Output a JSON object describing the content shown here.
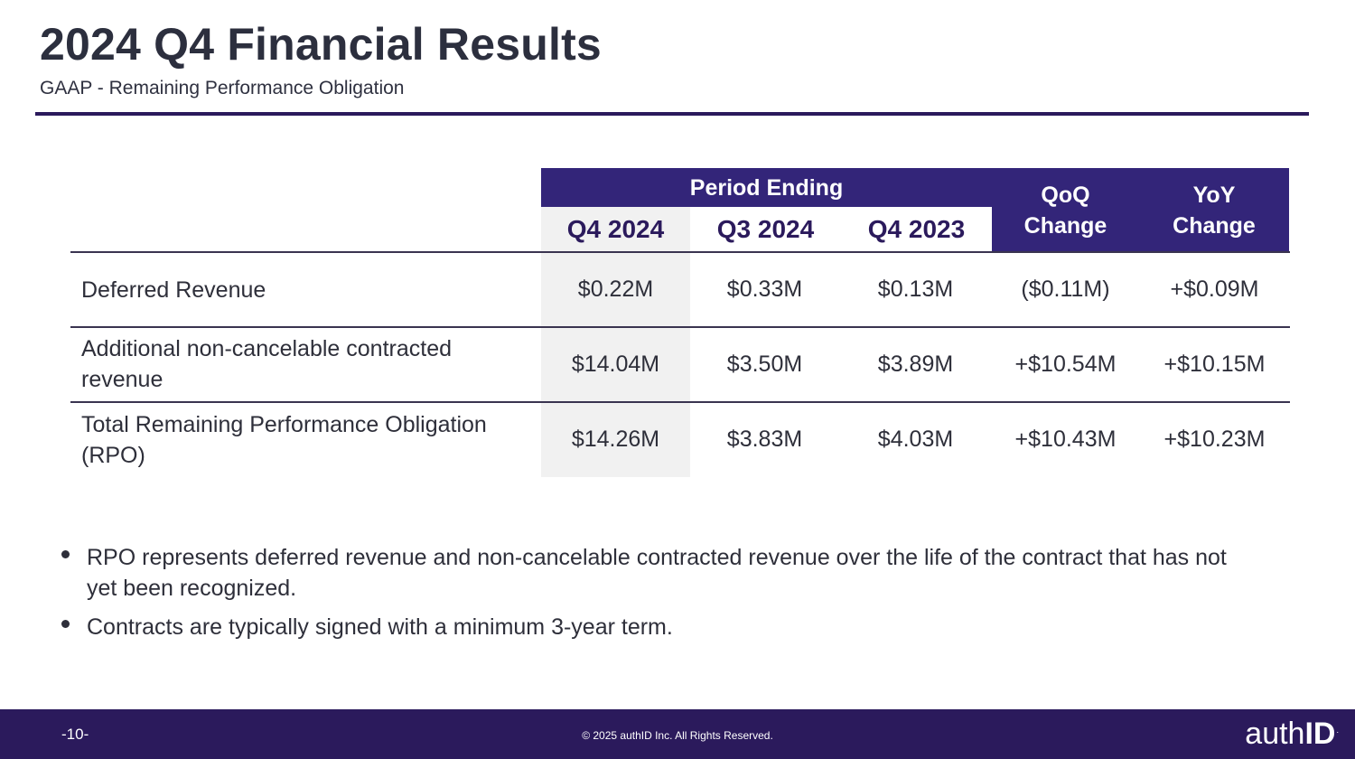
{
  "header": {
    "title": "2024 Q4 Financial Results",
    "subtitle": "GAAP - Remaining Performance Obligation"
  },
  "table": {
    "group_header": "Period Ending",
    "qoq_header_line1": "QoQ",
    "qoq_header_line2": "Change",
    "yoy_header_line1": "YoY",
    "yoy_header_line2": "Change",
    "periods": [
      "Q4 2024",
      "Q3 2024",
      "Q4 2023"
    ],
    "rows": [
      {
        "label": "Deferred Revenue",
        "values": [
          "$0.22M",
          "$0.33M",
          "$0.13M",
          "($0.11M)",
          "+$0.09M"
        ]
      },
      {
        "label": "Additional non-cancelable contracted revenue",
        "values": [
          "$14.04M",
          "$3.50M",
          "$3.89M",
          "+$10.54M",
          "+$10.15M"
        ]
      },
      {
        "label": "Total Remaining Performance Obligation (RPO)",
        "values": [
          "$14.26M",
          "$3.83M",
          "$4.03M",
          "+$10.43M",
          "+$10.23M"
        ]
      }
    ]
  },
  "bullets": [
    "RPO represents deferred revenue and non-cancelable contracted revenue over the life of the contract that has not yet been recognized.",
    "Contracts are typically signed with a minimum 3-year term."
  ],
  "footer": {
    "page_number": "-10-",
    "copyright": "© 2025 authID Inc. All Rights Reserved.",
    "logo_light": "auth",
    "logo_bold": "ID",
    "logo_mark": "."
  },
  "colors": {
    "brand_purple": "#2b1a5c",
    "header_purple": "#332579",
    "shade_gray": "#f1f1f1"
  }
}
